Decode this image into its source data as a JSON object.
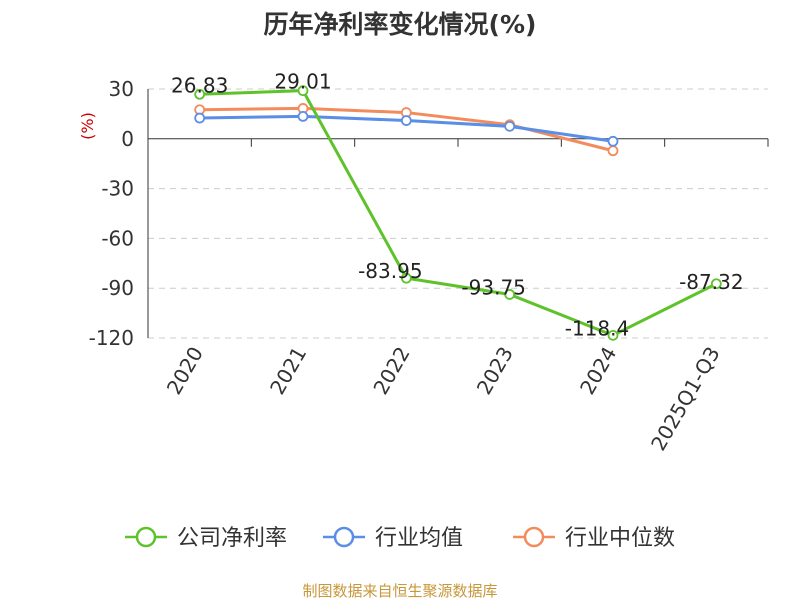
{
  "title": "历年净利率变化情况(%)",
  "source": "制图数据来自恒生聚源数据库",
  "chart_data": {
    "type": "line",
    "title": "历年净利率变化情况(%)",
    "ylabel": "(%)",
    "xlabel": "",
    "categories": [
      "2020",
      "2021",
      "2022",
      "2023",
      "2024",
      "2025Q1-Q3"
    ],
    "ylim": [
      -120,
      30
    ],
    "yticks": [
      30,
      0,
      -30,
      -60,
      -90,
      -120
    ],
    "grid": true,
    "legend_position": "bottom",
    "series": [
      {
        "name": "公司净利率",
        "color": "#5ec22b",
        "values": [
          26.83,
          29.01,
          -83.95,
          -93.75,
          -118.4,
          -87.32
        ],
        "labels": [
          "26.83",
          "29.01",
          "-83.95",
          "-93.75",
          "-118.4",
          "-87.32"
        ]
      },
      {
        "name": "行业均值",
        "color": "#5b8ee6",
        "values": [
          12.5,
          13.5,
          11.0,
          7.5,
          -1.5,
          null
        ]
      },
      {
        "name": "行业中位数",
        "color": "#f28c5c",
        "values": [
          17.5,
          18.3,
          15.8,
          8.5,
          -7.2,
          null
        ]
      }
    ]
  }
}
